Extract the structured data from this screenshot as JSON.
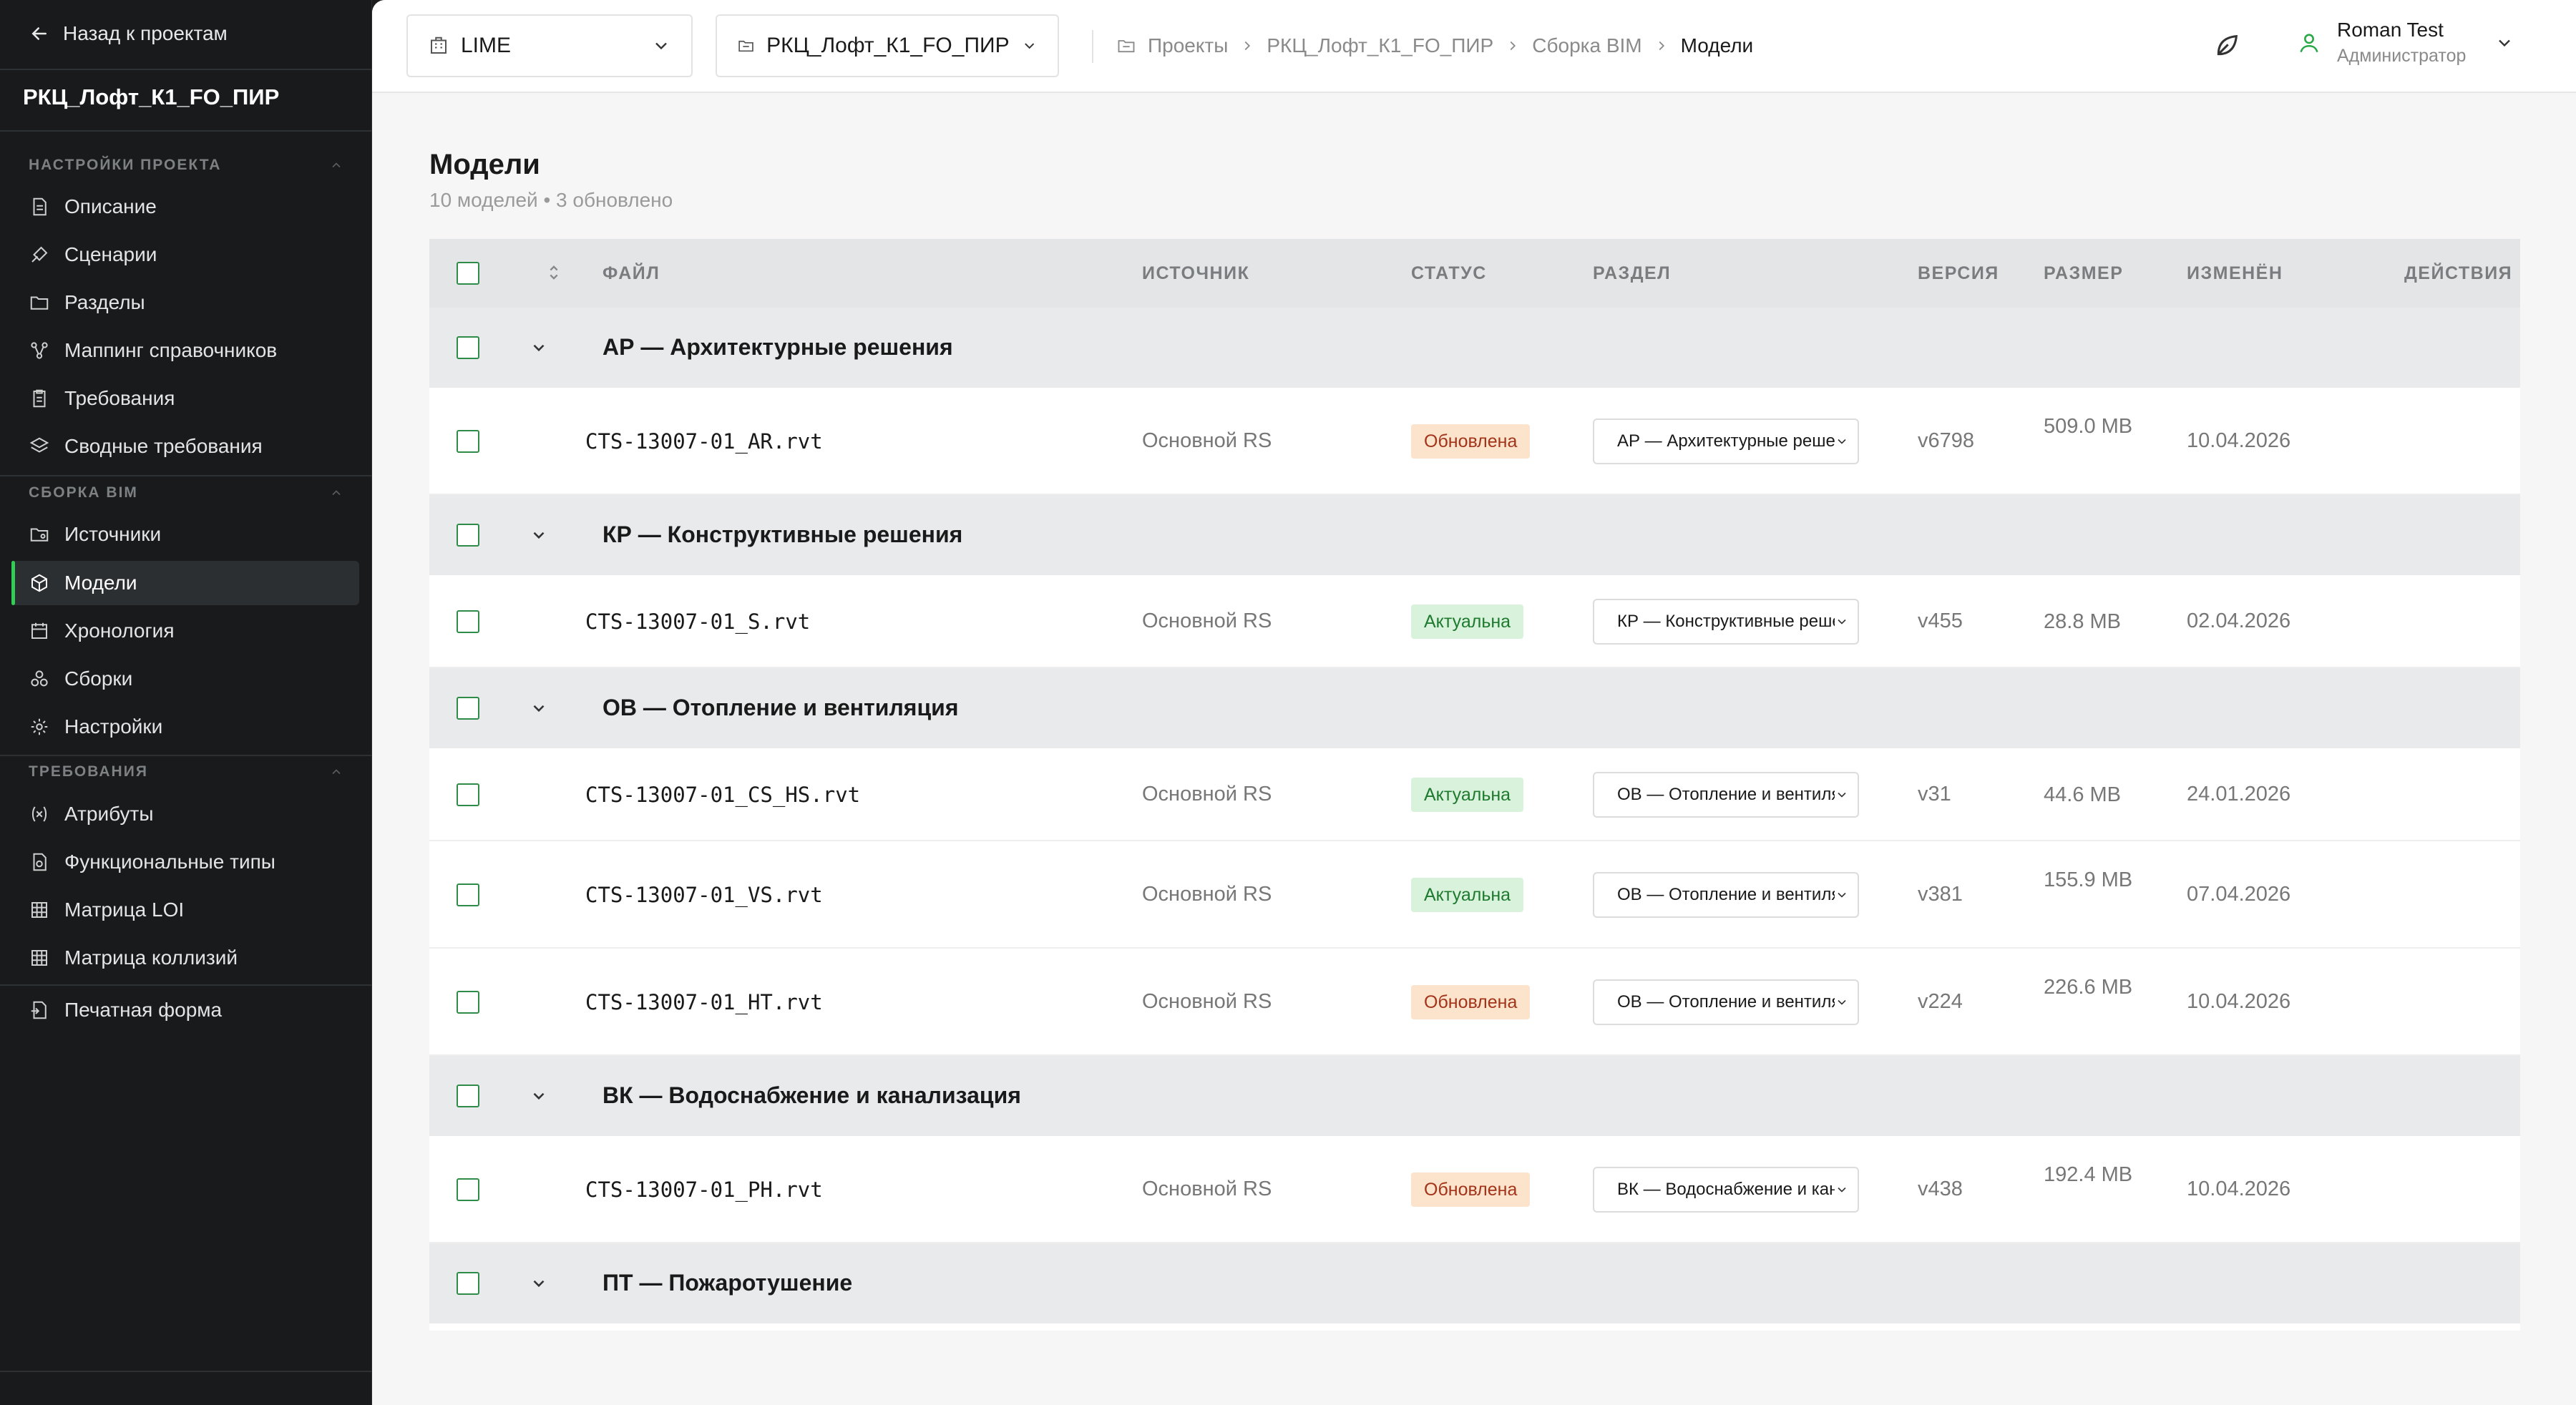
{
  "sidebar": {
    "back_label": "Назад к проектам",
    "project_name": "РКЦ_Лофт_К1_FO_ПИР",
    "sections": [
      {
        "title": "НАСТРОЙКИ ПРОЕКТА",
        "items": [
          {
            "label": "Описание",
            "icon": "document-icon"
          },
          {
            "label": "Сценарии",
            "icon": "scenario-icon"
          },
          {
            "label": "Разделы",
            "icon": "folder-icon"
          },
          {
            "label": "Маппинг справочников",
            "icon": "mapping-icon"
          },
          {
            "label": "Требования",
            "icon": "clipboard-icon"
          },
          {
            "label": "Сводные требования",
            "icon": "layers-icon"
          }
        ]
      },
      {
        "title": "СБОРКА BIM",
        "items": [
          {
            "label": "Источники",
            "icon": "folder-source-icon"
          },
          {
            "label": "Модели",
            "icon": "cube-icon",
            "active": true
          },
          {
            "label": "Хронология",
            "icon": "calendar-icon"
          },
          {
            "label": "Сборки",
            "icon": "assembly-icon"
          },
          {
            "label": "Настройки",
            "icon": "gear-icon"
          }
        ]
      },
      {
        "title": "ТРЕБОВАНИЯ",
        "items": [
          {
            "label": "Атрибуты",
            "icon": "variable-icon"
          },
          {
            "label": "Функциональные типы",
            "icon": "file-type-icon"
          },
          {
            "label": "Матрица LOI",
            "icon": "grid-icon"
          },
          {
            "label": "Матрица коллизий",
            "icon": "grid-icon"
          }
        ]
      }
    ],
    "print_form_label": "Печатная форма"
  },
  "topbar": {
    "org_selector": "LIME",
    "project_selector": "РКЦ_Лофт_К1_FO_ПИР",
    "breadcrumb": [
      "Проекты",
      "РКЦ_Лофт_К1_FO_ПИР",
      "Сборка BIM",
      "Модели"
    ],
    "user_name": "Roman Test",
    "user_role": "Администратор"
  },
  "page": {
    "title": "Модели",
    "subtitle": "10 моделей • 3 обновлено"
  },
  "table": {
    "columns": {
      "file": "ФАЙЛ",
      "source": "ИСТОЧНИК",
      "status": "СТАТУС",
      "section": "РАЗДЕЛ",
      "version": "ВЕРСИЯ",
      "size": "РАЗМЕР",
      "modified": "ИЗМЕНЁН",
      "actions": "ДЕЙСТВИЯ"
    },
    "groups": [
      {
        "title": "АР — Архитектурные решения",
        "rows": [
          {
            "file": "CTS-13007-01_AR.rvt",
            "source": "Основной RS",
            "status": "Обновлена",
            "status_kind": "updated",
            "section": "АР — Архитектурные решения",
            "version": "v6798",
            "size": "509.0 MB",
            "modified": "10.04.2026"
          }
        ]
      },
      {
        "title": "КР — Конструктивные решения",
        "rows": [
          {
            "file": "CTS-13007-01_S.rvt",
            "source": "Основной RS",
            "status": "Актуальна",
            "status_kind": "actual",
            "section": "КР — Конструктивные решения",
            "version": "v455",
            "size": "28.8 MB",
            "modified": "02.04.2026"
          }
        ]
      },
      {
        "title": "ОВ — Отопление и вентиляция",
        "rows": [
          {
            "file": "CTS-13007-01_CS_HS.rvt",
            "source": "Основной RS",
            "status": "Актуальна",
            "status_kind": "actual",
            "section": "ОВ — Отопление и вентиляция",
            "version": "v31",
            "size": "44.6 MB",
            "modified": "24.01.2026"
          },
          {
            "file": "CTS-13007-01_VS.rvt",
            "source": "Основной RS",
            "status": "Актуальна",
            "status_kind": "actual",
            "section": "ОВ — Отопление и вентиляция",
            "version": "v381",
            "size": "155.9 MB",
            "modified": "07.04.2026"
          },
          {
            "file": "CTS-13007-01_HT.rvt",
            "source": "Основной RS",
            "status": "Обновлена",
            "status_kind": "updated",
            "section": "ОВ — Отопление и вентиляция",
            "version": "v224",
            "size": "226.6 MB",
            "modified": "10.04.2026"
          }
        ]
      },
      {
        "title": "ВК — Водоснабжение и канализация",
        "rows": [
          {
            "file": "CTS-13007-01_PH.rvt",
            "source": "Основной RS",
            "status": "Обновлена",
            "status_kind": "updated",
            "section": "ВК — Водоснабжение и канализация",
            "version": "v438",
            "size": "192.4 MB",
            "modified": "10.04.2026"
          }
        ]
      },
      {
        "title": "ПТ — Пожаротушение",
        "rows": []
      }
    ]
  },
  "colors": {
    "accent": "#33cc55",
    "checkbox": "#2e8c48",
    "updated_bg": "#fbe3cc",
    "actual_bg": "#d9f2dc"
  }
}
